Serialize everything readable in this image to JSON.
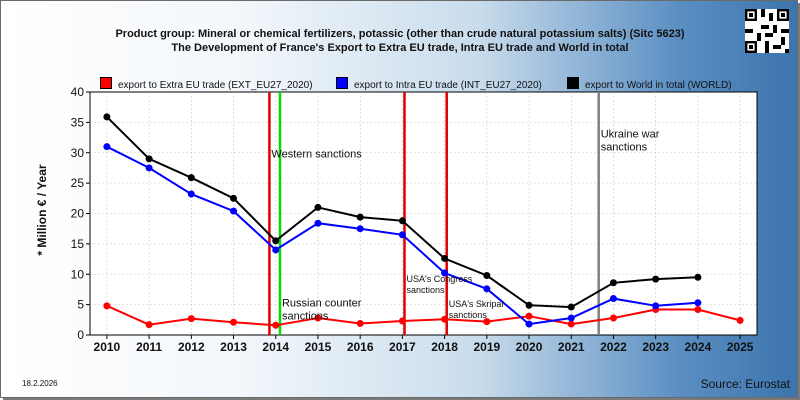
{
  "header": {
    "title_line1": "Product group: Mineral or chemical fertilizers, potassic (other than crude natural potassium salts) (Sitc 5623)",
    "title_line2": "The Development of France's Export to Extra EU trade, Intra EU trade and World in total"
  },
  "footer": {
    "date": "18.2.2026",
    "source": "Source: Eurostat"
  },
  "chart_data": {
    "type": "line",
    "ylabel": "* Million € / Year",
    "ylim": [
      0,
      40
    ],
    "yticks": [
      0,
      5,
      10,
      15,
      20,
      25,
      30,
      35,
      40
    ],
    "xlim": [
      2009.6,
      2025.4
    ],
    "x_ticks": [
      2010,
      2011,
      2012,
      2013,
      2014,
      2015,
      2016,
      2017,
      2018,
      2019,
      2020,
      2021,
      2022,
      2023,
      2024,
      2025
    ],
    "grid": true,
    "legend_position": "top",
    "series": [
      {
        "name": "export to Extra EU trade (EXT_EU27_2020)",
        "color": "#ff0000",
        "x": [
          2010,
          2011,
          2012,
          2013,
          2014,
          2015,
          2016,
          2017,
          2018,
          2019,
          2020,
          2021,
          2022,
          2023,
          2024,
          2025
        ],
        "values": [
          4.8,
          1.7,
          2.7,
          2.1,
          1.6,
          2.8,
          1.9,
          2.3,
          2.6,
          2.2,
          3.1,
          1.8,
          2.8,
          4.2,
          4.2,
          2.4
        ]
      },
      {
        "name": "export to Intra EU trade (INT_EU27_2020)",
        "color": "#0000ff",
        "x": [
          2010,
          2011,
          2012,
          2013,
          2014,
          2015,
          2016,
          2017,
          2018,
          2019,
          2020,
          2021,
          2022,
          2023,
          2024
        ],
        "values": [
          31.0,
          27.5,
          23.2,
          20.4,
          14.0,
          18.4,
          17.5,
          16.5,
          10.2,
          7.6,
          1.8,
          2.8,
          6.0,
          4.8,
          5.3
        ]
      },
      {
        "name": "export to World in total (WORLD)",
        "color": "#000000",
        "x": [
          2010,
          2011,
          2012,
          2013,
          2014,
          2015,
          2016,
          2017,
          2018,
          2019,
          2020,
          2021,
          2022,
          2023,
          2024
        ],
        "values": [
          35.9,
          29.0,
          25.9,
          22.5,
          15.5,
          21.0,
          19.4,
          18.8,
          12.6,
          9.8,
          4.9,
          4.6,
          8.6,
          9.2,
          9.5
        ]
      }
    ],
    "event_lines": [
      {
        "x": 2013.85,
        "color": "#dd0000",
        "label": "Western sanctions",
        "label_x": 2013.85,
        "label_y": 29.2
      },
      {
        "x": 2014.1,
        "color": "#00dd00",
        "label": "Russian counter sanctions",
        "label_x": 2014.1,
        "label_y": 4.7
      },
      {
        "x": 2017.05,
        "color": "#dd0000",
        "label": "USA's Congress sanctions",
        "label_x": 2017.05,
        "label_y": 8.7
      },
      {
        "x": 2018.05,
        "color": "#dd0000",
        "label": "USA's Skripal sanctions",
        "label_x": 2018.05,
        "label_y": 4.6
      },
      {
        "x": 2021.65,
        "color": "#808080",
        "label": "Ukraine war sanctions",
        "label_x": 2021.65,
        "label_y": 32.5
      }
    ]
  }
}
